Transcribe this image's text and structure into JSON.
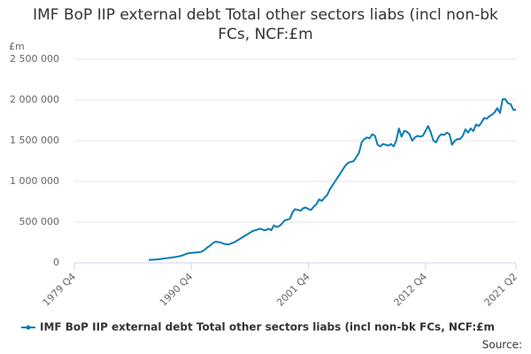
{
  "chart_data": {
    "type": "line",
    "title": "IMF BoP IIP external debt Total other sectors liabs (incl non-bk FCs, NCF:£m",
    "y_label": "£m",
    "source": "Source:",
    "categories": [
      "1979 Q4",
      null,
      null,
      null,
      null,
      null,
      null,
      null,
      null,
      null,
      null,
      null,
      null,
      null,
      null,
      null,
      null,
      null,
      null,
      null,
      null,
      null,
      null,
      null,
      null,
      null,
      null,
      null,
      null,
      null,
      null,
      null,
      null,
      null,
      null,
      null,
      null,
      null,
      null,
      null,
      null,
      null,
      null,
      null,
      "1990 Q4",
      null,
      null,
      null,
      null,
      null,
      null,
      null,
      null,
      null,
      null,
      null,
      null,
      null,
      null,
      null,
      null,
      null,
      null,
      null,
      null,
      null,
      null,
      null,
      null,
      null,
      null,
      null,
      null,
      null,
      null,
      null,
      null,
      null,
      null,
      null,
      null,
      null,
      null,
      null,
      null,
      null,
      null,
      null,
      "2001 Q4",
      null,
      null,
      null,
      null,
      null,
      null,
      null,
      null,
      null,
      null,
      null,
      null,
      null,
      null,
      null,
      null,
      null,
      null,
      null,
      null,
      null,
      null,
      null,
      null,
      null,
      null,
      null,
      null,
      null,
      null,
      null,
      null,
      null,
      null,
      null,
      null,
      null,
      null,
      null,
      null,
      null,
      null,
      null,
      "2012 Q4",
      null,
      null,
      null,
      null,
      null,
      null,
      null,
      null,
      null,
      null,
      null,
      null,
      null,
      null,
      null,
      null,
      null,
      null,
      null,
      null,
      null,
      null,
      null,
      null,
      null,
      null,
      null,
      null,
      null,
      null,
      null,
      null,
      null,
      "2021 Q2"
    ],
    "series": [
      {
        "name": "IMF BoP IIP external debt Total other sectors liabs (incl non-bk FCs, NCF:£m",
        "color": "#0a7ab5",
        "values": [
          null,
          null,
          null,
          null,
          null,
          null,
          null,
          null,
          null,
          null,
          null,
          null,
          null,
          null,
          null,
          null,
          null,
          null,
          null,
          null,
          null,
          null,
          null,
          null,
          null,
          null,
          null,
          null,
          35000,
          38000,
          40000,
          42000,
          45000,
          50000,
          55000,
          58000,
          62000,
          68000,
          72000,
          78000,
          85000,
          95000,
          110000,
          118000,
          122000,
          125000,
          128000,
          130000,
          140000,
          160000,
          190000,
          210000,
          240000,
          260000,
          255000,
          250000,
          235000,
          230000,
          225000,
          240000,
          250000,
          270000,
          290000,
          310000,
          330000,
          350000,
          370000,
          390000,
          400000,
          410000,
          420000,
          405000,
          400000,
          420000,
          400000,
          460000,
          440000,
          450000,
          480000,
          520000,
          530000,
          540000,
          620000,
          660000,
          650000,
          640000,
          670000,
          680000,
          660000,
          650000,
          690000,
          720000,
          780000,
          760000,
          800000,
          830000,
          900000,
          950000,
          1000000,
          1050000,
          1100000,
          1150000,
          1200000,
          1230000,
          1240000,
          1250000,
          1300000,
          1350000,
          1480000,
          1520000,
          1540000,
          1530000,
          1580000,
          1560000,
          1450000,
          1430000,
          1460000,
          1450000,
          1440000,
          1460000,
          1430000,
          1500000,
          1650000,
          1550000,
          1620000,
          1610000,
          1580000,
          1500000,
          1540000,
          1560000,
          1550000,
          1560000,
          1620000,
          1680000,
          1600000,
          1500000,
          1480000,
          1550000,
          1580000,
          1570000,
          1600000,
          1580000,
          1450000,
          1500000,
          1520000,
          1520000,
          1560000,
          1640000,
          1600000,
          1650000,
          1620000,
          1700000,
          1680000,
          1720000,
          1780000,
          1770000,
          1800000,
          1820000,
          1850000,
          1900000,
          1840000,
          2010000,
          2010000,
          1960000,
          1950000,
          1880000,
          1880000
        ]
      }
    ],
    "ylim": [
      0,
      2500000
    ],
    "yticks": [
      0,
      {
        "value": 500000,
        "label": "500 000"
      },
      {
        "value": 1000000,
        "label": "1 000 000"
      },
      {
        "value": 1500000,
        "label": "1 500 000"
      },
      {
        "value": 2000000,
        "label": "2 000 000"
      },
      {
        "value": 2500000,
        "label": "2 500 000"
      }
    ],
    "grid": true
  }
}
